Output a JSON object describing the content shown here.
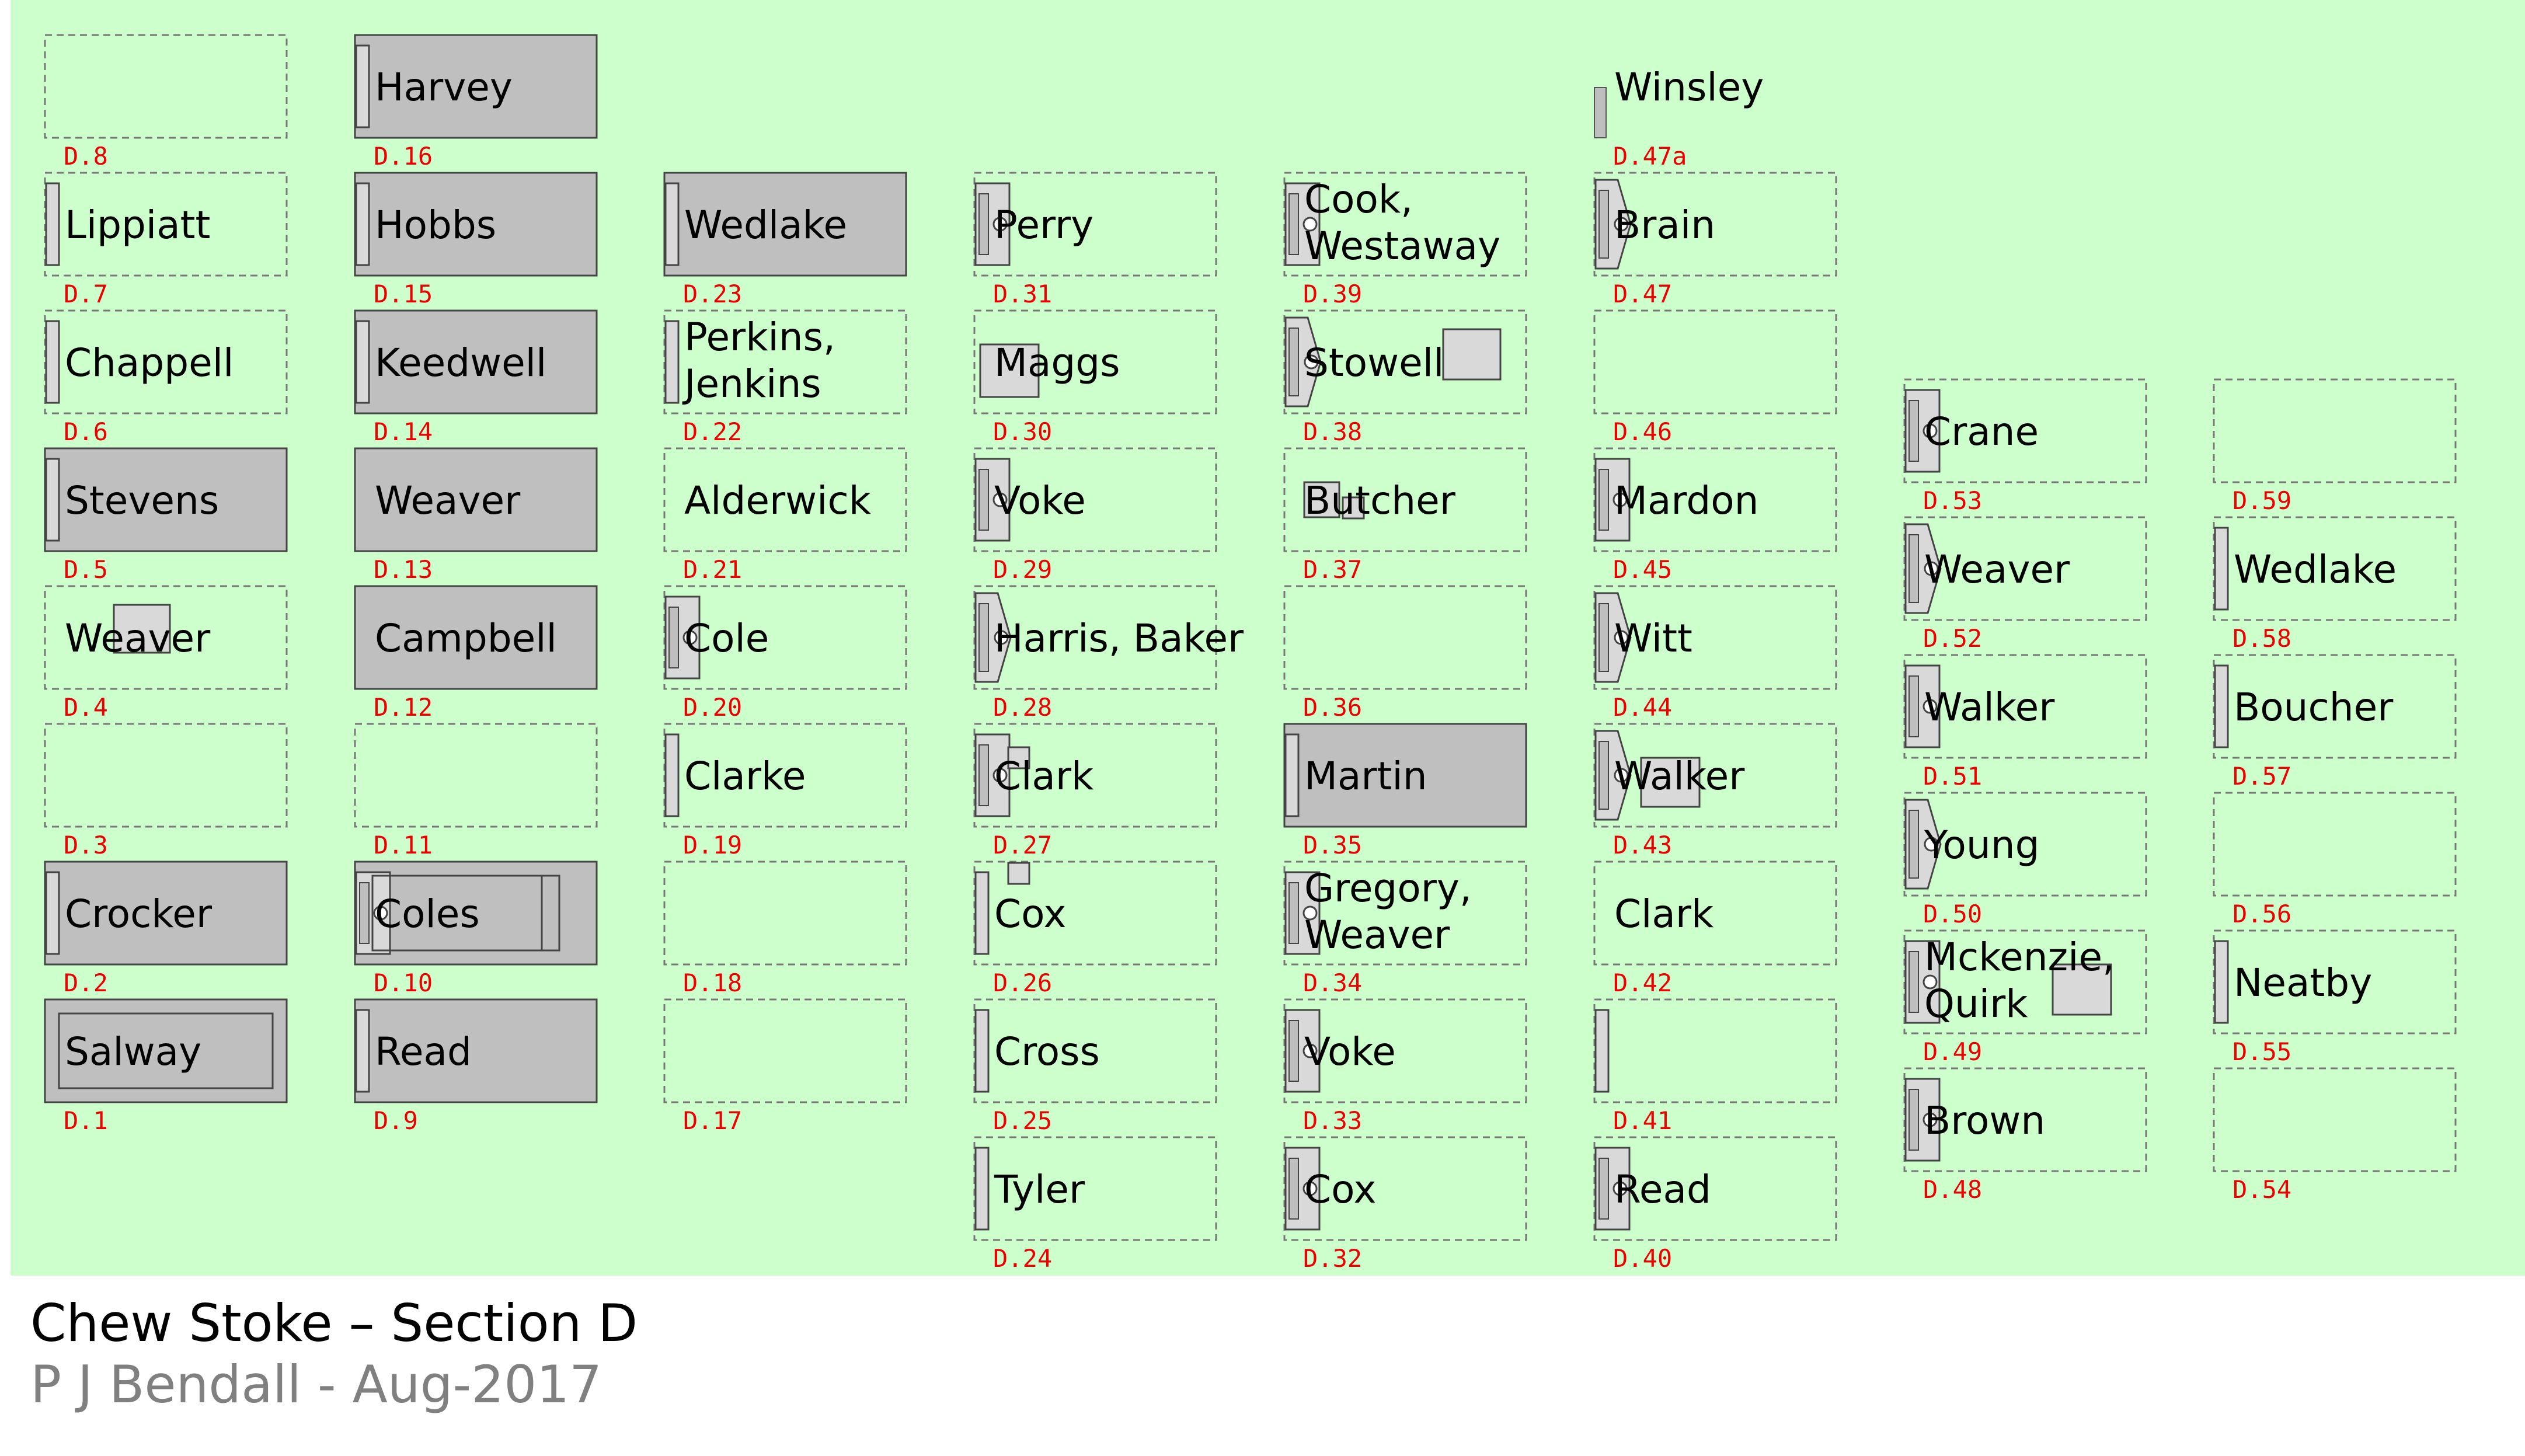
{
  "title": "Chew Stoke – Section D",
  "subtitle": "P J Bendall - Aug-2017",
  "colors": {
    "background": "#ccffcc",
    "plot_border": "#777777",
    "headstone_fill": "#bfbfbf",
    "feature_fill": "#d9d9d9",
    "code_text": "#ee0000",
    "name_text": "#000000"
  },
  "plots": [
    {
      "code": "D.8",
      "names": [],
      "fill": "empty"
    },
    {
      "code": "D.7",
      "names": [
        "Lippiatt"
      ],
      "fill": "empty"
    },
    {
      "code": "D.6",
      "names": [
        "Chappell"
      ],
      "fill": "empty"
    },
    {
      "code": "D.5",
      "names": [
        "Stevens"
      ],
      "fill": "grey"
    },
    {
      "code": "D.4",
      "names": [
        "Weaver"
      ],
      "fill": "empty"
    },
    {
      "code": "D.3",
      "names": [],
      "fill": "empty"
    },
    {
      "code": "D.2",
      "names": [
        "Crocker"
      ],
      "fill": "grey"
    },
    {
      "code": "D.1",
      "names": [
        "Salway"
      ],
      "fill": "grey"
    },
    {
      "code": "D.16",
      "names": [
        "Harvey"
      ],
      "fill": "grey"
    },
    {
      "code": "D.15",
      "names": [
        "Hobbs"
      ],
      "fill": "grey"
    },
    {
      "code": "D.14",
      "names": [
        "Keedwell"
      ],
      "fill": "grey"
    },
    {
      "code": "D.13",
      "names": [
        "Weaver"
      ],
      "fill": "grey"
    },
    {
      "code": "D.12",
      "names": [
        "Campbell"
      ],
      "fill": "grey"
    },
    {
      "code": "D.11",
      "names": [],
      "fill": "empty"
    },
    {
      "code": "D.10",
      "names": [
        "Coles"
      ],
      "fill": "grey"
    },
    {
      "code": "D.9",
      "names": [
        "Read"
      ],
      "fill": "grey"
    },
    {
      "code": "D.23",
      "names": [
        "Wedlake"
      ],
      "fill": "grey"
    },
    {
      "code": "D.22",
      "names": [
        "Perkins,",
        "Jenkins"
      ],
      "fill": "empty"
    },
    {
      "code": "D.21",
      "names": [
        "Alderwick"
      ],
      "fill": "empty"
    },
    {
      "code": "D.20",
      "names": [
        "Cole"
      ],
      "fill": "empty"
    },
    {
      "code": "D.19",
      "names": [
        "Clarke"
      ],
      "fill": "empty"
    },
    {
      "code": "D.18",
      "names": [],
      "fill": "empty"
    },
    {
      "code": "D.17",
      "names": [],
      "fill": "empty"
    },
    {
      "code": "D.31",
      "names": [
        "Perry"
      ],
      "fill": "empty"
    },
    {
      "code": "D.30",
      "names": [
        "Maggs"
      ],
      "fill": "empty"
    },
    {
      "code": "D.29",
      "names": [
        "Voke"
      ],
      "fill": "empty"
    },
    {
      "code": "D.28",
      "names": [
        "Harris, Baker"
      ],
      "fill": "empty"
    },
    {
      "code": "D.27",
      "names": [
        "Clark"
      ],
      "fill": "empty"
    },
    {
      "code": "D.26",
      "names": [
        "Cox"
      ],
      "fill": "empty"
    },
    {
      "code": "D.25",
      "names": [
        "Cross"
      ],
      "fill": "empty"
    },
    {
      "code": "D.24",
      "names": [
        "Tyler"
      ],
      "fill": "empty"
    },
    {
      "code": "D.39",
      "names": [
        "Cook,",
        "Westaway"
      ],
      "fill": "empty"
    },
    {
      "code": "D.38",
      "names": [
        "Stowell"
      ],
      "fill": "empty"
    },
    {
      "code": "D.37",
      "names": [
        "Butcher"
      ],
      "fill": "empty"
    },
    {
      "code": "D.36",
      "names": [],
      "fill": "empty"
    },
    {
      "code": "D.35",
      "names": [
        "Martin"
      ],
      "fill": "grey"
    },
    {
      "code": "D.34",
      "names": [
        "Gregory,",
        "Weaver"
      ],
      "fill": "empty"
    },
    {
      "code": "D.33",
      "names": [
        "Voke"
      ],
      "fill": "empty"
    },
    {
      "code": "D.32",
      "names": [
        "Cox"
      ],
      "fill": "empty"
    },
    {
      "code": "D.47a",
      "names": [
        "Winsley"
      ],
      "fill": "none"
    },
    {
      "code": "D.47",
      "names": [
        "Brain"
      ],
      "fill": "empty"
    },
    {
      "code": "D.46",
      "names": [],
      "fill": "empty"
    },
    {
      "code": "D.45",
      "names": [
        "Mardon"
      ],
      "fill": "empty"
    },
    {
      "code": "D.44",
      "names": [
        "Witt"
      ],
      "fill": "empty"
    },
    {
      "code": "D.43",
      "names": [
        "Walker"
      ],
      "fill": "empty"
    },
    {
      "code": "D.42",
      "names": [
        "Clark"
      ],
      "fill": "empty"
    },
    {
      "code": "D.41",
      "names": [],
      "fill": "empty"
    },
    {
      "code": "D.40",
      "names": [
        "Read"
      ],
      "fill": "empty"
    },
    {
      "code": "D.53",
      "names": [
        "Crane"
      ],
      "fill": "empty"
    },
    {
      "code": "D.52",
      "names": [
        "Weaver"
      ],
      "fill": "empty"
    },
    {
      "code": "D.51",
      "names": [
        "Walker"
      ],
      "fill": "empty"
    },
    {
      "code": "D.50",
      "names": [
        "Young"
      ],
      "fill": "empty"
    },
    {
      "code": "D.49",
      "names": [
        "Mckenzie,",
        "Quirk"
      ],
      "fill": "empty"
    },
    {
      "code": "D.48",
      "names": [
        "Brown"
      ],
      "fill": "empty"
    },
    {
      "code": "D.59",
      "names": [],
      "fill": "empty"
    },
    {
      "code": "D.58",
      "names": [
        "Wedlake"
      ],
      "fill": "empty"
    },
    {
      "code": "D.57",
      "names": [
        "Boucher"
      ],
      "fill": "empty"
    },
    {
      "code": "D.56",
      "names": [],
      "fill": "empty"
    },
    {
      "code": "D.55",
      "names": [
        "Neatby"
      ],
      "fill": "empty"
    },
    {
      "code": "D.54",
      "names": [],
      "fill": "empty"
    }
  ]
}
